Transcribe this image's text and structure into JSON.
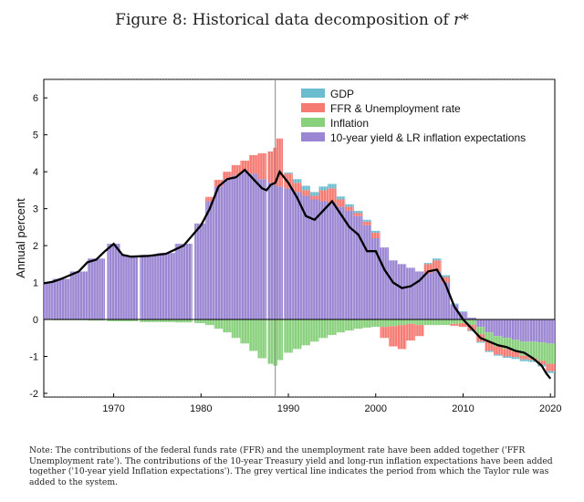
{
  "figure": {
    "title_prefix": "Figure 8: Historical data decomposition of ",
    "title_math": "r*",
    "note": "Note: The contributions of the federal funds rate (FFR) and the unemployment rate have been added together ('FFR Unemployment rate'). The contributions of the 10-year Treasury yield and long-run inflation expectations have been added together ('10-year yield Inflation expectations'). The grey vertical line indicates the period from which the Taylor rule was added to the system."
  },
  "chart_data": {
    "type": "bar",
    "subtype": "stacked bar with line overlay",
    "ylabel": "Annual percent",
    "xlabel": "",
    "xlim": [
      1962,
      2020.5
    ],
    "ylim": [
      -2.1,
      6.5
    ],
    "xticks": [
      1970,
      1980,
      1990,
      2000,
      2010,
      2020
    ],
    "yticks": [
      -2,
      -1,
      0,
      1,
      2,
      3,
      4,
      5,
      6
    ],
    "vertical_line_x": 1988.5,
    "legend_position": "top-right",
    "x": [
      1962,
      1964,
      1966,
      1968,
      1970,
      1971,
      1972,
      1974,
      1976,
      1978,
      1980,
      1981,
      1982,
      1983,
      1984,
      1985,
      1986,
      1987,
      1988,
      1988.5,
      1989,
      1990,
      1991,
      1992,
      1993,
      1994,
      1995,
      1996,
      1997,
      1998,
      1999,
      2000,
      2001,
      2002,
      2003,
      2004,
      2005,
      2006,
      2007,
      2008,
      2009,
      2010,
      2011,
      2012,
      2013,
      2014,
      2015,
      2016,
      2017,
      2018,
      2019,
      2020
    ],
    "series": [
      {
        "name": "GDP",
        "color": "#6bbccf",
        "values": [
          0,
          0,
          0,
          0,
          0,
          0,
          0,
          0,
          0,
          0,
          0,
          0,
          0,
          0,
          0,
          0,
          0,
          0,
          0,
          0,
          0,
          0.03,
          0.1,
          0.12,
          0.1,
          0.1,
          0.12,
          0.08,
          0.07,
          0.06,
          0.05,
          0.05,
          0,
          0,
          0,
          0,
          0,
          0.03,
          0.05,
          0.05,
          0.03,
          0.02,
          -0.02,
          -0.03,
          -0.03,
          -0.03,
          -0.04,
          -0.05,
          -0.05,
          -0.05,
          -0.05,
          -0.05
        ]
      },
      {
        "name": "FFR & Unemployment rate",
        "color": "#f47a72",
        "values": [
          0,
          0,
          0,
          0,
          0,
          0,
          0,
          0,
          0,
          0,
          0,
          0.12,
          0.18,
          0.2,
          0.28,
          0.3,
          0.5,
          0.7,
          0.85,
          1.0,
          1.3,
          0.4,
          0.25,
          0.15,
          0.1,
          0.3,
          0.4,
          0.2,
          0.1,
          0.08,
          0.1,
          0.15,
          -0.3,
          -0.55,
          -0.65,
          -0.45,
          -0.3,
          0.25,
          0.3,
          0.15,
          -0.05,
          -0.1,
          -0.15,
          -0.2,
          -0.25,
          -0.22,
          -0.2,
          -0.15,
          -0.1,
          -0.05,
          -0.1,
          -0.2
        ]
      },
      {
        "name": "Inflation",
        "color": "#88d07c",
        "values": [
          0,
          -0.02,
          -0.02,
          -0.03,
          -0.05,
          -0.05,
          -0.05,
          -0.07,
          -0.07,
          -0.08,
          -0.1,
          -0.15,
          -0.25,
          -0.35,
          -0.5,
          -0.65,
          -0.85,
          -1.05,
          -1.2,
          -1.25,
          -1.1,
          -0.9,
          -0.8,
          -0.7,
          -0.6,
          -0.5,
          -0.42,
          -0.35,
          -0.3,
          -0.25,
          -0.22,
          -0.2,
          -0.2,
          -0.18,
          -0.15,
          -0.12,
          -0.15,
          -0.15,
          -0.15,
          -0.15,
          -0.12,
          -0.1,
          -0.15,
          -0.2,
          -0.25,
          -0.28,
          -0.3,
          -0.32,
          -0.38,
          -0.45,
          -0.5,
          -0.55
        ]
      },
      {
        "name": "10-year yield & LR inflation expectations",
        "color": "#9a86d2",
        "values": [
          1.0,
          1.1,
          1.3,
          1.65,
          2.05,
          1.75,
          1.72,
          1.75,
          1.8,
          2.05,
          2.6,
          3.2,
          3.6,
          3.8,
          3.9,
          4.0,
          3.95,
          3.8,
          3.7,
          3.65,
          3.6,
          3.55,
          3.45,
          3.35,
          3.25,
          3.2,
          3.15,
          3.05,
          2.95,
          2.8,
          2.55,
          2.2,
          1.95,
          1.6,
          1.5,
          1.4,
          1.3,
          1.25,
          1.3,
          1.0,
          0.4,
          0.2,
          0.05,
          -0.2,
          -0.35,
          -0.45,
          -0.5,
          -0.55,
          -0.6,
          -0.6,
          -0.62,
          -0.65
        ]
      }
    ],
    "line": {
      "name": "r*",
      "color": "#000000",
      "points": [
        [
          1962,
          0.98
        ],
        [
          1963,
          1.02
        ],
        [
          1964,
          1.1
        ],
        [
          1965,
          1.2
        ],
        [
          1966,
          1.3
        ],
        [
          1967,
          1.55
        ],
        [
          1968,
          1.62
        ],
        [
          1969,
          1.85
        ],
        [
          1970,
          2.05
        ],
        [
          1971,
          1.75
        ],
        [
          1972,
          1.7
        ],
        [
          1974,
          1.72
        ],
        [
          1976,
          1.78
        ],
        [
          1978,
          2.0
        ],
        [
          1980,
          2.55
        ],
        [
          1981,
          3.0
        ],
        [
          1982,
          3.6
        ],
        [
          1983,
          3.8
        ],
        [
          1984,
          3.85
        ],
        [
          1985,
          4.05
        ],
        [
          1986,
          3.8
        ],
        [
          1987,
          3.55
        ],
        [
          1987.5,
          3.5
        ],
        [
          1988,
          3.65
        ],
        [
          1988.5,
          3.7
        ],
        [
          1989,
          4.0
        ],
        [
          1990,
          3.7
        ],
        [
          1991,
          3.3
        ],
        [
          1992,
          2.8
        ],
        [
          1993,
          2.7
        ],
        [
          1994,
          2.95
        ],
        [
          1995,
          3.2
        ],
        [
          1996,
          2.85
        ],
        [
          1997,
          2.5
        ],
        [
          1998,
          2.3
        ],
        [
          1999,
          1.85
        ],
        [
          2000,
          1.85
        ],
        [
          2001,
          1.35
        ],
        [
          2002,
          1.0
        ],
        [
          2003,
          0.85
        ],
        [
          2004,
          0.9
        ],
        [
          2005,
          1.05
        ],
        [
          2006,
          1.3
        ],
        [
          2007,
          1.35
        ],
        [
          2008,
          0.95
        ],
        [
          2009,
          0.35
        ],
        [
          2010,
          0.0
        ],
        [
          2011,
          -0.25
        ],
        [
          2012,
          -0.5
        ],
        [
          2013,
          -0.6
        ],
        [
          2014,
          -0.7
        ],
        [
          2015,
          -0.75
        ],
        [
          2016,
          -0.85
        ],
        [
          2017,
          -0.9
        ],
        [
          2018,
          -1.05
        ],
        [
          2019,
          -1.25
        ],
        [
          2019.5,
          -1.45
        ],
        [
          2020,
          -1.6
        ]
      ]
    }
  }
}
